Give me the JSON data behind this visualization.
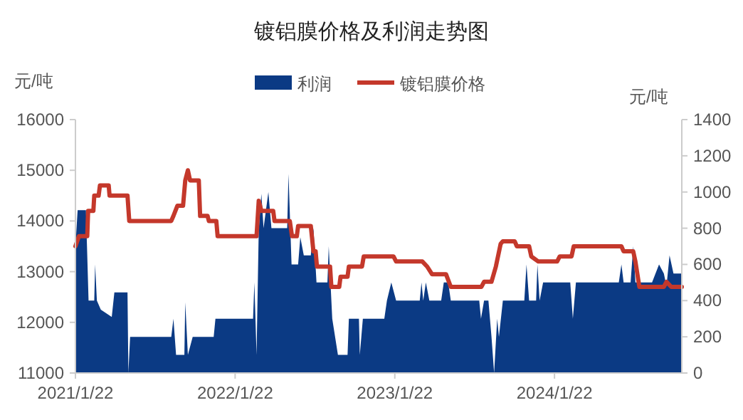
{
  "chart_data": {
    "type": "line",
    "title": "镀铝膜价格及利润走势图",
    "ylabel": "元/吨",
    "y2label": "元/吨",
    "legend": "top",
    "grid": false,
    "xlim": [
      "2021-01-22",
      "2024-11-08"
    ],
    "xticks": [
      {
        "value": "2021-01-22",
        "label": "2021/1/22"
      },
      {
        "value": "2022-01-22",
        "label": "2022/1/22"
      },
      {
        "value": "2023-01-22",
        "label": "2023/1/22"
      },
      {
        "value": "2024-01-22",
        "label": "2024/1/22"
      }
    ],
    "ylim": [
      11000,
      16000
    ],
    "yticks": [
      11000,
      12000,
      13000,
      14000,
      15000,
      16000
    ],
    "y2lim": [
      0,
      1400
    ],
    "y2ticks": [
      0,
      200,
      400,
      600,
      800,
      1000,
      1200,
      1400
    ],
    "series": [
      {
        "name": "利润",
        "type": "area",
        "axis": "y2",
        "color": "#0b3a84",
        "x": [
          "2021-01-22",
          "2021-01-27",
          "2021-02-15",
          "2021-02-21",
          "2021-03-06",
          "2021-03-08",
          "2021-03-12",
          "2021-03-21",
          "2021-04-15",
          "2021-04-21",
          "2021-05-21",
          "2021-05-23",
          "2021-05-27",
          "2021-08-29",
          "2021-09-03",
          "2021-09-09",
          "2021-09-28",
          "2021-09-30",
          "2021-10-06",
          "2021-10-17",
          "2021-12-04",
          "2021-12-08",
          "2022-03-04",
          "2022-03-07",
          "2022-03-12",
          "2022-03-17",
          "2022-03-23",
          "2022-03-28",
          "2022-04-08",
          "2022-04-15",
          "2022-05-21",
          "2022-05-24",
          "2022-05-31",
          "2022-06-15",
          "2022-06-20",
          "2022-06-28",
          "2022-07-14",
          "2022-07-20",
          "2022-07-27",
          "2022-08-21",
          "2022-08-24",
          "2022-09-01",
          "2022-09-14",
          "2022-10-06",
          "2022-10-09",
          "2022-11-01",
          "2022-11-03",
          "2022-11-10",
          "2022-12-29",
          "2023-01-04",
          "2023-01-14",
          "2023-01-25",
          "2023-03-20",
          "2023-03-24",
          "2023-03-28",
          "2023-04-03",
          "2023-04-11",
          "2023-05-08",
          "2023-05-14",
          "2023-05-24",
          "2023-05-30",
          "2023-08-03",
          "2023-08-07",
          "2023-08-14",
          "2023-08-24",
          "2023-08-31",
          "2023-09-06",
          "2023-09-13",
          "2023-09-17",
          "2023-09-26",
          "2023-11-14",
          "2023-11-19",
          "2023-11-25",
          "2023-12-11",
          "2023-12-14",
          "2023-12-19",
          "2023-12-27",
          "2024-02-27",
          "2024-03-04",
          "2024-03-11",
          "2024-06-17",
          "2024-06-23",
          "2024-06-28",
          "2024-07-14",
          "2024-07-20",
          "2024-07-25",
          "2024-09-01",
          "2024-09-17",
          "2024-09-28",
          "2024-10-04",
          "2024-10-11",
          "2024-10-20",
          "2024-11-08"
        ],
        "values": [
          700,
          900,
          900,
          400,
          400,
          600,
          400,
          350,
          310,
          445,
          445,
          0,
          200,
          200,
          300,
          100,
          100,
          390,
          100,
          200,
          200,
          300,
          300,
          500,
          100,
          790,
          990,
          800,
          1000,
          800,
          800,
          1100,
          600,
          600,
          750,
          650,
          650,
          800,
          500,
          500,
          700,
          300,
          100,
          100,
          300,
          300,
          100,
          300,
          300,
          400,
          500,
          400,
          400,
          500,
          400,
          500,
          400,
          400,
          500,
          500,
          400,
          400,
          300,
          400,
          400,
          200,
          0,
          300,
          200,
          400,
          400,
          600,
          400,
          400,
          600,
          400,
          500,
          500,
          300,
          500,
          500,
          600,
          500,
          500,
          700,
          500,
          500,
          600,
          550,
          480,
          650,
          550,
          550
        ]
      },
      {
        "name": "镀铝膜价格",
        "color": "#c4382b",
        "x": [
          "2021-01-22",
          "2021-01-30",
          "2021-02-18",
          "2021-02-20",
          "2021-03-04",
          "2021-03-06",
          "2021-03-16",
          "2021-03-19",
          "2021-04-08",
          "2021-04-10",
          "2021-05-21",
          "2021-05-25",
          "2021-08-29",
          "2021-09-03",
          "2021-09-12",
          "2021-09-25",
          "2021-09-30",
          "2021-10-06",
          "2021-10-11",
          "2021-10-31",
          "2021-11-03",
          "2021-11-20",
          "2021-11-23",
          "2021-12-10",
          "2021-12-13",
          "2022-03-12",
          "2022-03-17",
          "2022-03-23",
          "2022-04-19",
          "2022-04-22",
          "2022-05-27",
          "2022-06-01",
          "2022-06-12",
          "2022-06-15",
          "2022-07-14",
          "2022-07-20",
          "2022-07-25",
          "2022-07-28",
          "2022-08-27",
          "2022-08-30",
          "2022-09-17",
          "2022-09-20",
          "2022-10-06",
          "2022-10-09",
          "2022-11-08",
          "2022-11-12",
          "2023-01-19",
          "2023-01-25",
          "2023-03-26",
          "2023-04-06",
          "2023-04-17",
          "2023-05-19",
          "2023-05-30",
          "2023-08-08",
          "2023-08-14",
          "2023-08-31",
          "2023-09-10",
          "2023-09-21",
          "2023-09-26",
          "2023-10-23",
          "2023-10-28",
          "2023-11-25",
          "2023-11-30",
          "2023-12-16",
          "2024-01-28",
          "2024-02-03",
          "2024-03-01",
          "2024-03-06",
          "2024-06-23",
          "2024-06-28",
          "2024-07-20",
          "2024-07-25",
          "2024-08-03",
          "2024-09-28",
          "2024-10-04",
          "2024-10-15",
          "2024-11-08"
        ],
        "values": [
          13500,
          13700,
          13700,
          14200,
          14200,
          14500,
          14500,
          14700,
          14700,
          14500,
          14500,
          14000,
          14000,
          14100,
          14300,
          14300,
          14800,
          15000,
          14800,
          14800,
          14100,
          14100,
          14000,
          14000,
          13700,
          13700,
          14400,
          14200,
          14200,
          14000,
          14000,
          13700,
          13700,
          13900,
          13900,
          13400,
          13400,
          13100,
          13100,
          12700,
          12700,
          12900,
          12900,
          13100,
          13100,
          13300,
          13300,
          13200,
          13200,
          13100,
          12950,
          12950,
          12700,
          12700,
          12800,
          12800,
          13100,
          13550,
          13600,
          13600,
          13500,
          13500,
          13300,
          13200,
          13200,
          13300,
          13300,
          13500,
          13500,
          13400,
          13400,
          13200,
          12700,
          12700,
          12800,
          12700,
          12700
        ]
      }
    ]
  }
}
